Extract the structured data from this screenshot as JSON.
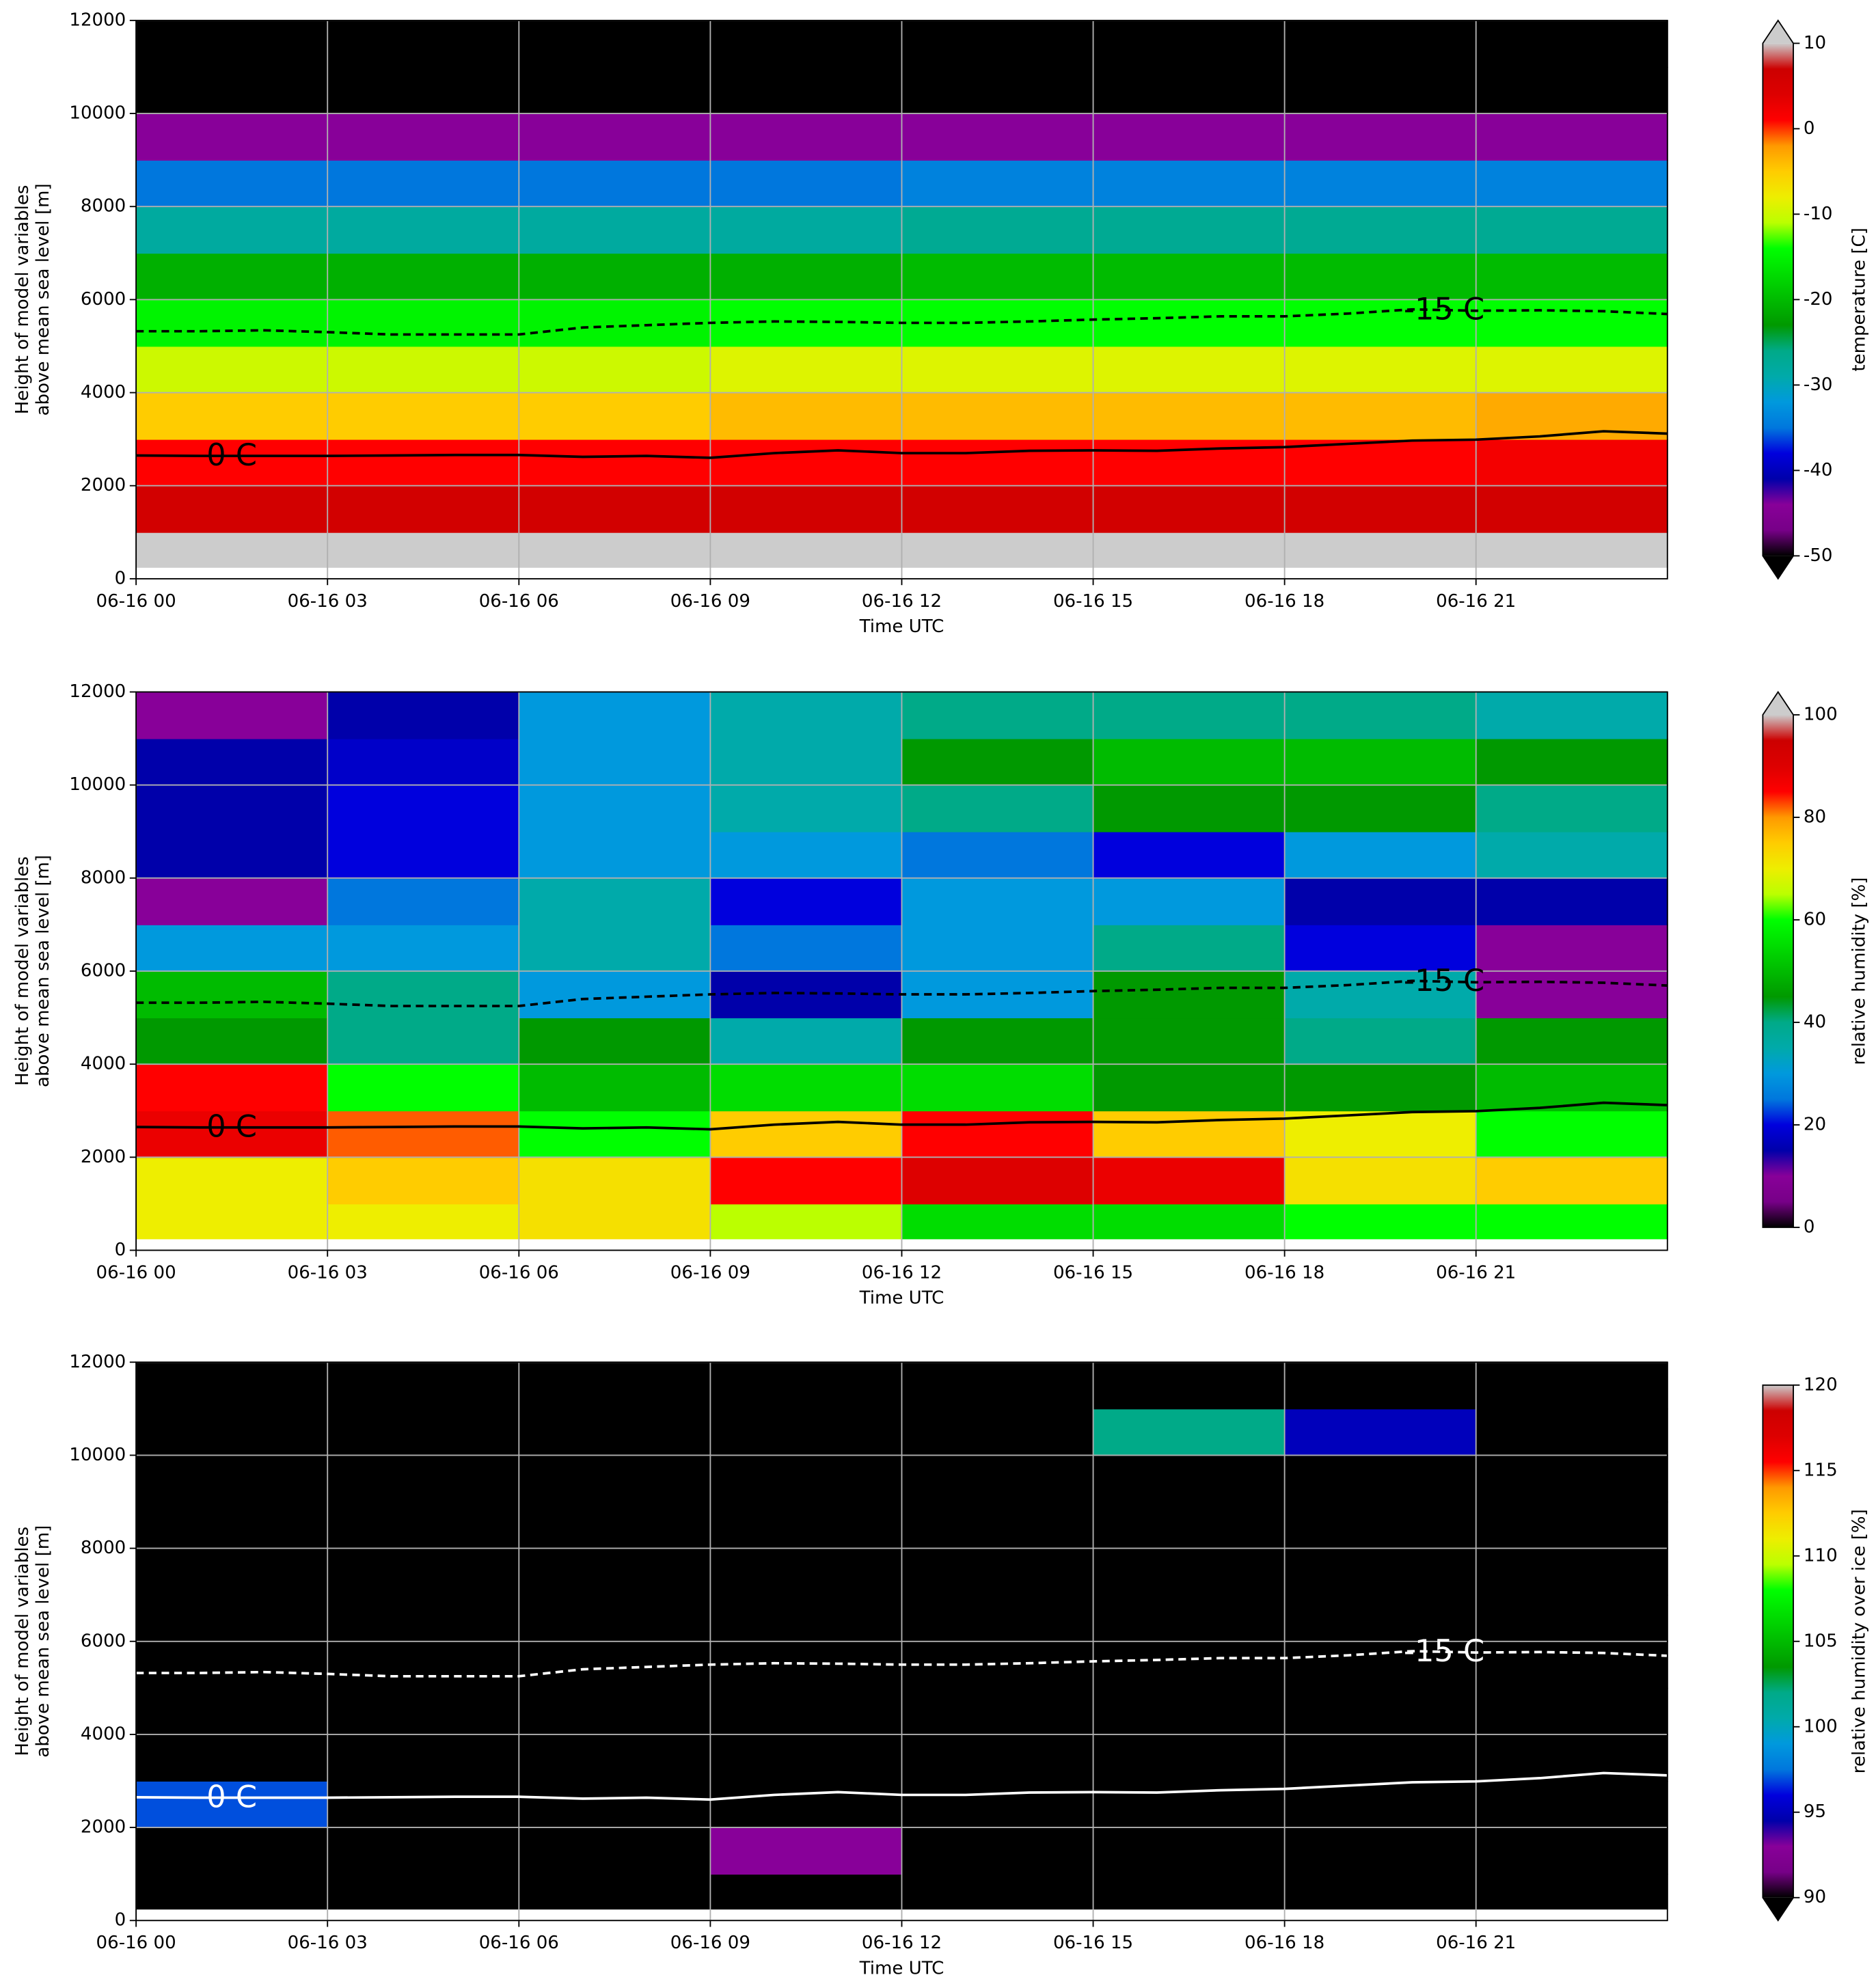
{
  "chart_data": [
    {
      "type": "heatmap",
      "xlabel": "Time UTC",
      "ylabel": [
        "Height of model variables",
        "above mean sea level [m]"
      ],
      "colorbar_label": "temperature [C]",
      "colormap": "nipy_spectral",
      "extend": "both",
      "zlim": [
        -50,
        10
      ],
      "zticks": [
        -50,
        -40,
        -30,
        -20,
        -10,
        0,
        10
      ],
      "xlim": [
        0,
        24
      ],
      "ylim": [
        0,
        12000
      ],
      "grid": true,
      "xticks": [
        {
          "value": 0,
          "label": "06-16 00"
        },
        {
          "value": 3,
          "label": "06-16 03"
        },
        {
          "value": 6,
          "label": "06-16 06"
        },
        {
          "value": 9,
          "label": "06-16 09"
        },
        {
          "value": 12,
          "label": "06-16 12"
        },
        {
          "value": 15,
          "label": "06-16 15"
        },
        {
          "value": 18,
          "label": "06-16 18"
        },
        {
          "value": 21,
          "label": "06-16 21"
        }
      ],
      "yticks": [
        0,
        2000,
        4000,
        6000,
        8000,
        10000,
        12000
      ],
      "x_edges": [
        0,
        3,
        6,
        9,
        12,
        15,
        18,
        21,
        24
      ],
      "y_edges": [
        250,
        1000,
        2000,
        3000,
        4000,
        5000,
        6000,
        7000,
        8000,
        9000,
        10000,
        11000,
        12000
      ],
      "z": [
        [
          12,
          12,
          12,
          12,
          12,
          12,
          12,
          12
        ],
        [
          6,
          6,
          6,
          6,
          6,
          6,
          6,
          6
        ],
        [
          1,
          1,
          1,
          1,
          1,
          1,
          1,
          2
        ],
        [
          -5,
          -5,
          -5,
          -4,
          -4,
          -4,
          -4,
          -3
        ],
        [
          -10,
          -10,
          -10,
          -9,
          -9,
          -9,
          -9,
          -9
        ],
        [
          -15,
          -15,
          -15,
          -14,
          -14,
          -14,
          -14,
          -14
        ],
        [
          -21,
          -21,
          -21,
          -21,
          -20,
          -20,
          -20,
          -20
        ],
        [
          -28,
          -28,
          -28,
          -28,
          -27,
          -27,
          -27,
          -27
        ],
        [
          -35,
          -35,
          -35,
          -35,
          -34,
          -34,
          -34,
          -34
        ],
        [
          -44,
          -44,
          -44,
          -44,
          -44,
          -44,
          -44,
          -44
        ],
        [
          -52,
          -52,
          -52,
          -52,
          -52,
          -52,
          -52,
          -52
        ],
        [
          -55,
          -55,
          -55,
          -55,
          -55,
          -55,
          -55,
          -55
        ]
      ],
      "contour_x": [
        0,
        1,
        2,
        3,
        4,
        5,
        6,
        7,
        8,
        9,
        10,
        11,
        12,
        13,
        14,
        15,
        16,
        17,
        18,
        19,
        20,
        21,
        22,
        23,
        24
      ],
      "contours": [
        {
          "name": "0 C",
          "color": "#000000",
          "dashed": false,
          "values": [
            2650,
            2640,
            2640,
            2640,
            2650,
            2660,
            2660,
            2620,
            2640,
            2600,
            2700,
            2760,
            2700,
            2700,
            2750,
            2760,
            2750,
            2800,
            2830,
            2900,
            2970,
            2990,
            3060,
            3170,
            3120
          ]
        },
        {
          "name": "-15 C",
          "color": "#000000",
          "dashed": true,
          "values": [
            5320,
            5320,
            5340,
            5300,
            5250,
            5250,
            5250,
            5400,
            5450,
            5500,
            5530,
            5520,
            5500,
            5500,
            5530,
            5570,
            5600,
            5640,
            5640,
            5700,
            5790,
            5760,
            5770,
            5750,
            5690
          ]
        }
      ]
    },
    {
      "type": "heatmap",
      "xlabel": "Time UTC",
      "ylabel": [
        "Height of model variables",
        "above mean sea level [m]"
      ],
      "colorbar_label": "relative humidity [%]",
      "colormap": "nipy_spectral",
      "extend": "max",
      "zlim": [
        0,
        100
      ],
      "zticks": [
        0,
        20,
        40,
        60,
        80,
        100
      ],
      "xlim": [
        0,
        24
      ],
      "ylim": [
        0,
        12000
      ],
      "grid": true,
      "xticks": [
        {
          "value": 0,
          "label": "06-16 00"
        },
        {
          "value": 3,
          "label": "06-16 03"
        },
        {
          "value": 6,
          "label": "06-16 06"
        },
        {
          "value": 9,
          "label": "06-16 09"
        },
        {
          "value": 12,
          "label": "06-16 12"
        },
        {
          "value": 15,
          "label": "06-16 15"
        },
        {
          "value": 18,
          "label": "06-16 18"
        },
        {
          "value": 21,
          "label": "06-16 21"
        }
      ],
      "yticks": [
        0,
        2000,
        4000,
        6000,
        8000,
        10000,
        12000
      ],
      "x_edges": [
        0,
        3,
        6,
        9,
        12,
        15,
        18,
        21,
        24
      ],
      "y_edges": [
        250,
        1000,
        2000,
        3000,
        4000,
        5000,
        6000,
        7000,
        8000,
        9000,
        10000,
        11000,
        12000
      ],
      "z": [
        [
          70,
          70,
          72,
          65,
          55,
          55,
          60,
          60
        ],
        [
          70,
          75,
          72,
          85,
          90,
          88,
          72,
          75
        ],
        [
          88,
          82,
          60,
          75,
          85,
          75,
          70,
          60
        ],
        [
          85,
          60,
          50,
          55,
          55,
          45,
          45,
          50
        ],
        [
          45,
          40,
          45,
          35,
          45,
          45,
          40,
          45
        ],
        [
          50,
          40,
          30,
          15,
          30,
          45,
          35,
          10
        ],
        [
          30,
          30,
          35,
          25,
          30,
          40,
          20,
          10
        ],
        [
          10,
          25,
          35,
          20,
          30,
          30,
          15,
          15
        ],
        [
          15,
          20,
          30,
          30,
          25,
          20,
          30,
          35
        ],
        [
          15,
          20,
          30,
          35,
          40,
          45,
          45,
          40
        ],
        [
          15,
          18,
          30,
          35,
          45,
          50,
          50,
          45
        ],
        [
          10,
          15,
          30,
          35,
          40,
          40,
          40,
          35
        ]
      ],
      "contour_x": [
        0,
        1,
        2,
        3,
        4,
        5,
        6,
        7,
        8,
        9,
        10,
        11,
        12,
        13,
        14,
        15,
        16,
        17,
        18,
        19,
        20,
        21,
        22,
        23,
        24
      ],
      "contours": [
        {
          "name": "0 C",
          "color": "#000000",
          "dashed": false,
          "values": [
            2650,
            2640,
            2640,
            2640,
            2650,
            2660,
            2660,
            2620,
            2640,
            2600,
            2700,
            2760,
            2700,
            2700,
            2750,
            2760,
            2750,
            2800,
            2830,
            2900,
            2970,
            2990,
            3060,
            3170,
            3120
          ]
        },
        {
          "name": "-15 C",
          "color": "#000000",
          "dashed": true,
          "values": [
            5320,
            5320,
            5340,
            5300,
            5250,
            5250,
            5250,
            5400,
            5450,
            5500,
            5530,
            5520,
            5500,
            5500,
            5530,
            5570,
            5600,
            5640,
            5640,
            5700,
            5790,
            5760,
            5770,
            5750,
            5690
          ]
        }
      ]
    },
    {
      "type": "heatmap",
      "xlabel": "Time UTC",
      "ylabel": [
        "Height of model variables",
        "above mean sea level [m]"
      ],
      "colorbar_label": "relative humidity over ice [%]",
      "colormap": "nipy_spectral",
      "extend": "min",
      "zlim": [
        90,
        120
      ],
      "zticks": [
        90,
        95,
        100,
        105,
        110,
        115,
        120
      ],
      "xlim": [
        0,
        24
      ],
      "ylim": [
        0,
        12000
      ],
      "grid": true,
      "xticks": [
        {
          "value": 0,
          "label": "06-16 00"
        },
        {
          "value": 3,
          "label": "06-16 03"
        },
        {
          "value": 6,
          "label": "06-16 06"
        },
        {
          "value": 9,
          "label": "06-16 09"
        },
        {
          "value": 12,
          "label": "06-16 12"
        },
        {
          "value": 15,
          "label": "06-16 15"
        },
        {
          "value": 18,
          "label": "06-16 18"
        },
        {
          "value": 21,
          "label": "06-16 21"
        }
      ],
      "yticks": [
        0,
        2000,
        4000,
        6000,
        8000,
        10000,
        12000
      ],
      "x_edges": [
        0,
        3,
        6,
        9,
        12,
        15,
        18,
        21,
        24
      ],
      "y_edges": [
        250,
        1000,
        2000,
        3000,
        4000,
        5000,
        6000,
        7000,
        8000,
        9000,
        10000,
        11000,
        12000
      ],
      "z": [
        [
          80,
          80,
          80,
          80,
          80,
          80,
          80,
          80
        ],
        [
          80,
          80,
          80,
          93,
          80,
          80,
          80,
          80
        ],
        [
          97,
          80,
          80,
          80,
          80,
          80,
          80,
          80
        ],
        [
          80,
          80,
          80,
          80,
          80,
          80,
          80,
          80
        ],
        [
          80,
          80,
          80,
          80,
          80,
          80,
          80,
          80
        ],
        [
          80,
          80,
          80,
          80,
          80,
          80,
          80,
          80
        ],
        [
          80,
          80,
          80,
          80,
          80,
          80,
          80,
          80
        ],
        [
          80,
          80,
          80,
          80,
          80,
          80,
          80,
          80
        ],
        [
          80,
          80,
          80,
          80,
          80,
          80,
          80,
          80
        ],
        [
          80,
          80,
          80,
          80,
          80,
          80,
          80,
          80
        ],
        [
          80,
          80,
          80,
          80,
          80,
          102,
          95,
          80
        ],
        [
          80,
          80,
          80,
          80,
          80,
          80,
          80,
          80
        ]
      ],
      "contour_x": [
        0,
        1,
        2,
        3,
        4,
        5,
        6,
        7,
        8,
        9,
        10,
        11,
        12,
        13,
        14,
        15,
        16,
        17,
        18,
        19,
        20,
        21,
        22,
        23,
        24
      ],
      "contours": [
        {
          "name": "0 C",
          "color": "#ffffff",
          "dashed": false,
          "values": [
            2650,
            2640,
            2640,
            2640,
            2650,
            2660,
            2660,
            2620,
            2640,
            2600,
            2700,
            2760,
            2700,
            2700,
            2750,
            2760,
            2750,
            2800,
            2830,
            2900,
            2970,
            2990,
            3060,
            3170,
            3120
          ]
        },
        {
          "name": "-15 C",
          "color": "#ffffff",
          "dashed": true,
          "values": [
            5320,
            5320,
            5340,
            5300,
            5250,
            5250,
            5250,
            5400,
            5450,
            5500,
            5530,
            5520,
            5500,
            5500,
            5530,
            5570,
            5600,
            5640,
            5640,
            5700,
            5790,
            5760,
            5770,
            5750,
            5690
          ]
        }
      ]
    }
  ]
}
